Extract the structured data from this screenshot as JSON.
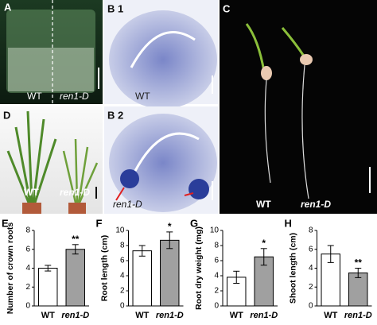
{
  "panels": [
    {
      "letter": "A",
      "labels": [
        "WT",
        "ren1-D"
      ]
    },
    {
      "letter": "B 1",
      "labels": [
        "WT"
      ]
    },
    {
      "letter": "B 2",
      "labels": [
        "ren1-D"
      ]
    },
    {
      "letter": "C",
      "labels": [
        "WT",
        "ren1-D"
      ]
    },
    {
      "letter": "D",
      "labels": [
        "WT",
        "ren1-D"
      ]
    }
  ],
  "chart_data": [
    {
      "type": "bar",
      "title": "E",
      "y_label": "Number of crown roots",
      "categories": [
        "WT",
        "ren1-D"
      ],
      "values": [
        4.0,
        6.0
      ],
      "errors": [
        0.3,
        0.5
      ],
      "colors": [
        "#ffffff",
        "#a0a0a0"
      ],
      "annotation": "**",
      "ylim": [
        0,
        8
      ],
      "yticks": [
        0,
        2,
        4,
        6,
        8
      ]
    },
    {
      "type": "bar",
      "title": "F",
      "y_label": "Root length (cm)",
      "categories": [
        "WT",
        "ren1-D"
      ],
      "values": [
        7.3,
        8.7
      ],
      "errors": [
        0.7,
        1.1
      ],
      "colors": [
        "#ffffff",
        "#a0a0a0"
      ],
      "annotation": "*",
      "ylim": [
        0,
        10
      ],
      "yticks": [
        0,
        2,
        4,
        6,
        8,
        10
      ]
    },
    {
      "type": "bar",
      "title": "G",
      "y_label": "Root dry weight (mg)",
      "categories": [
        "WT",
        "ren1-D"
      ],
      "values": [
        3.8,
        6.5
      ],
      "errors": [
        0.8,
        1.1
      ],
      "colors": [
        "#ffffff",
        "#a0a0a0"
      ],
      "annotation": "*",
      "ylim": [
        0,
        10
      ],
      "yticks": [
        0,
        2,
        4,
        6,
        8,
        10
      ]
    },
    {
      "type": "bar",
      "title": "H",
      "y_label": "Shoot length (cm)",
      "categories": [
        "WT",
        "ren1-D"
      ],
      "values": [
        5.5,
        3.5
      ],
      "errors": [
        0.9,
        0.5
      ],
      "colors": [
        "#ffffff",
        "#a0a0a0"
      ],
      "annotation": "**",
      "ylim": [
        0,
        8
      ],
      "yticks": [
        0,
        2,
        4,
        6,
        8
      ]
    }
  ]
}
